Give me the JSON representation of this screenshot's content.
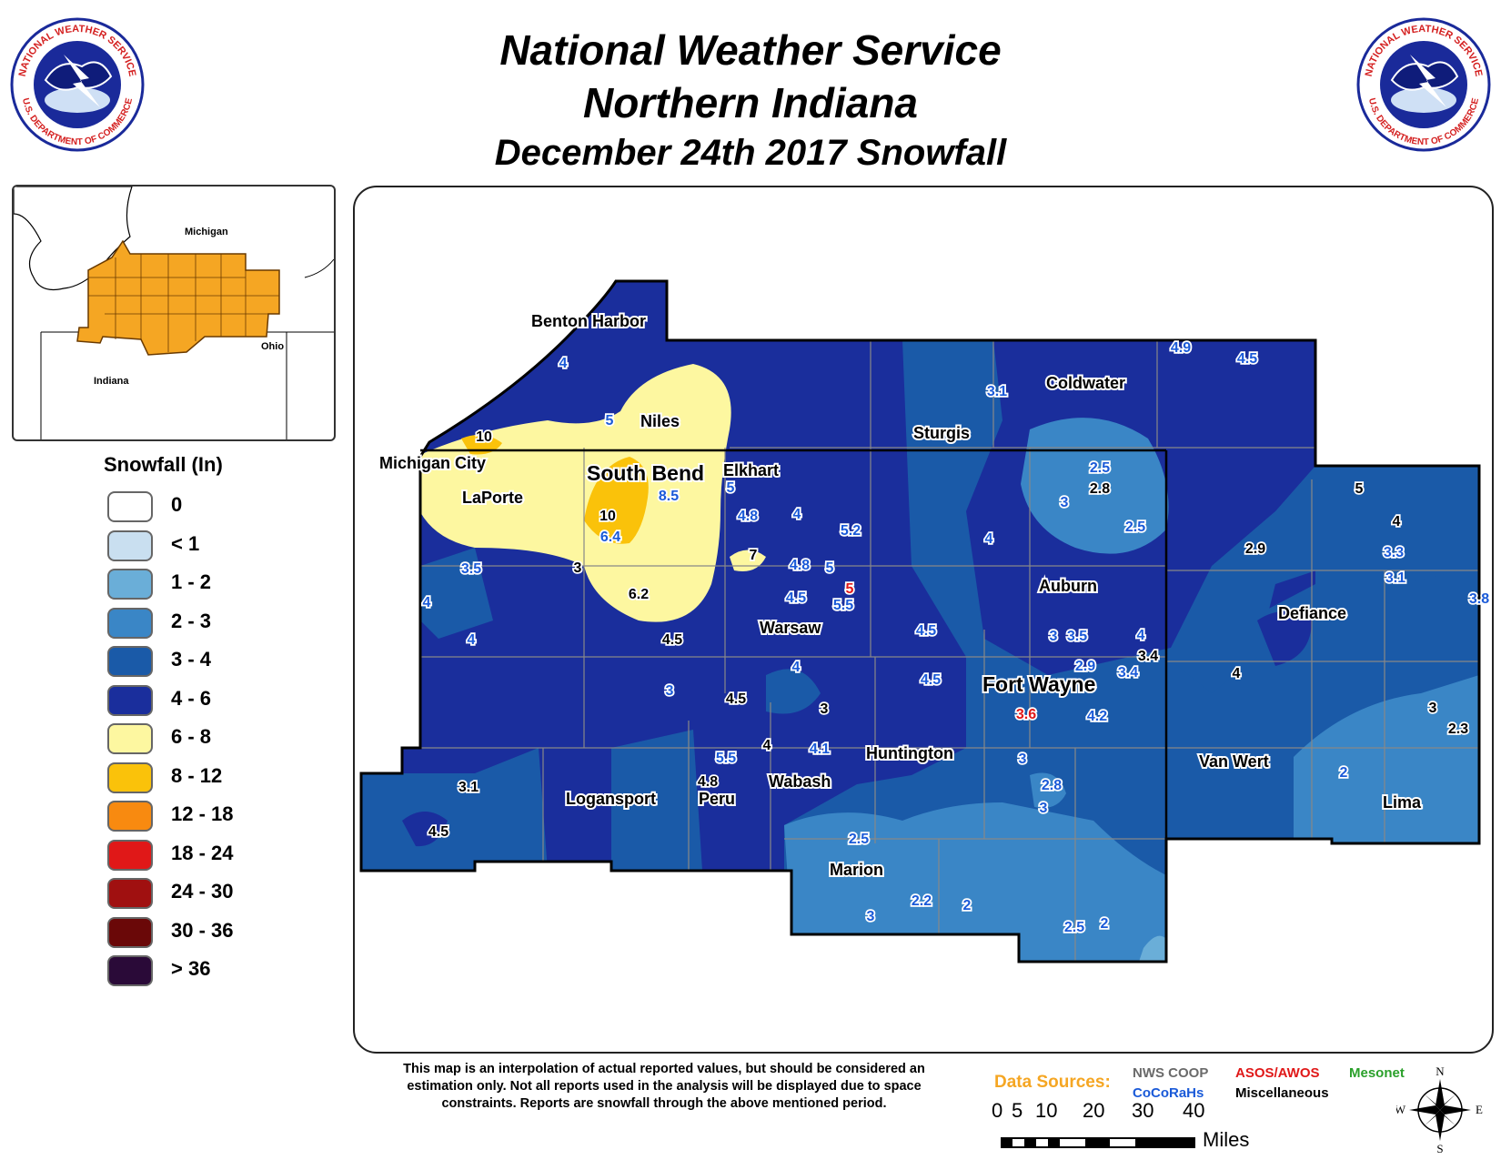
{
  "header": {
    "line1": "National Weather Service",
    "line2": "Northern Indiana",
    "line3": "December 24th 2017 Snowfall"
  },
  "logo": {
    "ring_top_text": "NATIONAL WEATHER SERVICE",
    "ring_bottom_text": "U.S. DEPARTMENT OF COMMERCE",
    "colors": {
      "ring_text": "#d42020",
      "disc": "#1a2a9a",
      "sky": "#cfe0f5"
    }
  },
  "inset": {
    "labels": {
      "michigan": "Michigan",
      "ohio": "Ohio",
      "indiana": "Indiana"
    },
    "region_color": "#f5a623"
  },
  "legend": {
    "title": "Snowfall (In)",
    "items": [
      {
        "label": "0",
        "color": "#ffffff"
      },
      {
        "label": "< 1",
        "color": "#c9dff0"
      },
      {
        "label": "1 - 2",
        "color": "#6aaed8"
      },
      {
        "label": "2 - 3",
        "color": "#3a86c6"
      },
      {
        "label": "3 - 4",
        "color": "#1a5aa8"
      },
      {
        "label": "4 - 6",
        "color": "#1a2e9c"
      },
      {
        "label": "6 - 8",
        "color": "#fdf7a0"
      },
      {
        "label": "8 - 12",
        "color": "#fac20a"
      },
      {
        "label": "12 - 18",
        "color": "#f88a10"
      },
      {
        "label": "18 - 24",
        "color": "#e01818"
      },
      {
        "label": "24 - 30",
        "color": "#a01010"
      },
      {
        "label": "30 - 36",
        "color": "#6a0808"
      },
      {
        "label": "> 36",
        "color": "#2a0a38"
      }
    ]
  },
  "map": {
    "cities": [
      "Benton Harbor",
      "Niles",
      "Michigan City",
      "LaPorte",
      "South Bend",
      "Elkhart",
      "Sturgis",
      "Coldwater",
      "Auburn",
      "Warsaw",
      "Defiance",
      "Fort Wayne",
      "Huntington",
      "Wabash",
      "Logansport",
      "Peru",
      "Marion",
      "Van Wert",
      "Lima"
    ],
    "reports": [
      {
        "value": "4",
        "source": "cocorahs"
      },
      {
        "value": "5",
        "source": "cocorahs"
      },
      {
        "value": "10",
        "source": "coop"
      },
      {
        "value": "8.5",
        "source": "cocorahs"
      },
      {
        "value": "10",
        "source": "coop"
      },
      {
        "value": "6.4",
        "source": "cocorahs"
      },
      {
        "value": "3",
        "source": "coop"
      },
      {
        "value": "6.2",
        "source": "coop"
      },
      {
        "value": "7",
        "source": "coop"
      },
      {
        "value": "5",
        "source": "cocorahs"
      },
      {
        "value": "4.8",
        "source": "cocorahs"
      },
      {
        "value": "4",
        "source": "cocorahs"
      },
      {
        "value": "5.2",
        "source": "cocorahs"
      },
      {
        "value": "4.8",
        "source": "cocorahs"
      },
      {
        "value": "5",
        "source": "cocorahs"
      },
      {
        "value": "5",
        "source": "asos"
      },
      {
        "value": "4.5",
        "source": "cocorahs"
      },
      {
        "value": "5.5",
        "source": "cocorahs"
      },
      {
        "value": "3.5",
        "source": "cocorahs"
      },
      {
        "value": "4",
        "source": "cocorahs"
      },
      {
        "value": "4",
        "source": "cocorahs"
      },
      {
        "value": "4.5",
        "source": "coop"
      },
      {
        "value": "3",
        "source": "cocorahs"
      },
      {
        "value": "4.5",
        "source": "coop"
      },
      {
        "value": "4",
        "source": "cocorahs"
      },
      {
        "value": "3",
        "source": "coop"
      },
      {
        "value": "4.5",
        "source": "cocorahs"
      },
      {
        "value": "4.5",
        "source": "cocorahs"
      },
      {
        "value": "4.9",
        "source": "cocorahs"
      },
      {
        "value": "4.5",
        "source": "cocorahs"
      },
      {
        "value": "3.1",
        "source": "cocorahs"
      },
      {
        "value": "2.5",
        "source": "cocorahs"
      },
      {
        "value": "2.8",
        "source": "coop"
      },
      {
        "value": "3",
        "source": "cocorahs"
      },
      {
        "value": "2.5",
        "source": "cocorahs"
      },
      {
        "value": "4",
        "source": "cocorahs"
      },
      {
        "value": "3",
        "source": "cocorahs"
      },
      {
        "value": "3.5",
        "source": "cocorahs"
      },
      {
        "value": "4",
        "source": "cocorahs"
      },
      {
        "value": "3.4",
        "source": "coop"
      },
      {
        "value": "2.9",
        "source": "cocorahs"
      },
      {
        "value": "3.4",
        "source": "cocorahs"
      },
      {
        "value": "3.6",
        "source": "asos"
      },
      {
        "value": "4.2",
        "source": "cocorahs"
      },
      {
        "value": "5",
        "source": "coop"
      },
      {
        "value": "4",
        "source": "coop"
      },
      {
        "value": "2.9",
        "source": "coop"
      },
      {
        "value": "3.3",
        "source": "cocorahs"
      },
      {
        "value": "3.1",
        "source": "cocorahs"
      },
      {
        "value": "3.8",
        "source": "cocorahs"
      },
      {
        "value": "4",
        "source": "coop"
      },
      {
        "value": "3",
        "source": "coop"
      },
      {
        "value": "2.3",
        "source": "coop"
      },
      {
        "value": "2",
        "source": "cocorahs"
      },
      {
        "value": "3.1",
        "source": "coop"
      },
      {
        "value": "4.5",
        "source": "coop"
      },
      {
        "value": "5.5",
        "source": "cocorahs"
      },
      {
        "value": "4.8",
        "source": "coop"
      },
      {
        "value": "4",
        "source": "coop"
      },
      {
        "value": "4.1",
        "source": "cocorahs"
      },
      {
        "value": "3",
        "source": "cocorahs"
      },
      {
        "value": "2.8",
        "source": "cocorahs"
      },
      {
        "value": "3",
        "source": "cocorahs"
      },
      {
        "value": "2.5",
        "source": "cocorahs"
      },
      {
        "value": "2.2",
        "source": "cocorahs"
      },
      {
        "value": "2",
        "source": "cocorahs"
      },
      {
        "value": "3",
        "source": "cocorahs"
      },
      {
        "value": "2.5",
        "source": "cocorahs"
      },
      {
        "value": "2",
        "source": "cocorahs"
      }
    ],
    "source_colors": {
      "coop": "#000000",
      "cocorahs": "#1a5ad8",
      "asos": "#e01818"
    }
  },
  "footer": {
    "disclaimer": "This map is an interpolation of actual reported values, but should be considered an estimation only. Not all reports used in the analysis will be displayed due to space constraints. Reports are snowfall through the above mentioned period.",
    "data_sources_title": "Data Sources:",
    "sources": {
      "nws_coop": "NWS COOP",
      "asos_awos": "ASOS/AWOS",
      "mesonet": "Mesonet",
      "cocorahs": "CoCoRaHs",
      "misc": "Miscellaneous"
    },
    "source_label_colors": {
      "nws_coop": "#6a6a6a",
      "asos_awos": "#e01818",
      "mesonet": "#2aa02a",
      "cocorahs": "#1a5ad8",
      "misc": "#000000",
      "title": "#f5a623"
    },
    "scale": {
      "ticks": [
        "0",
        "5",
        "10",
        "20",
        "30",
        "40"
      ],
      "unit": "Miles"
    },
    "compass": {
      "n": "N",
      "s": "S",
      "e": "E",
      "w": "W"
    }
  }
}
